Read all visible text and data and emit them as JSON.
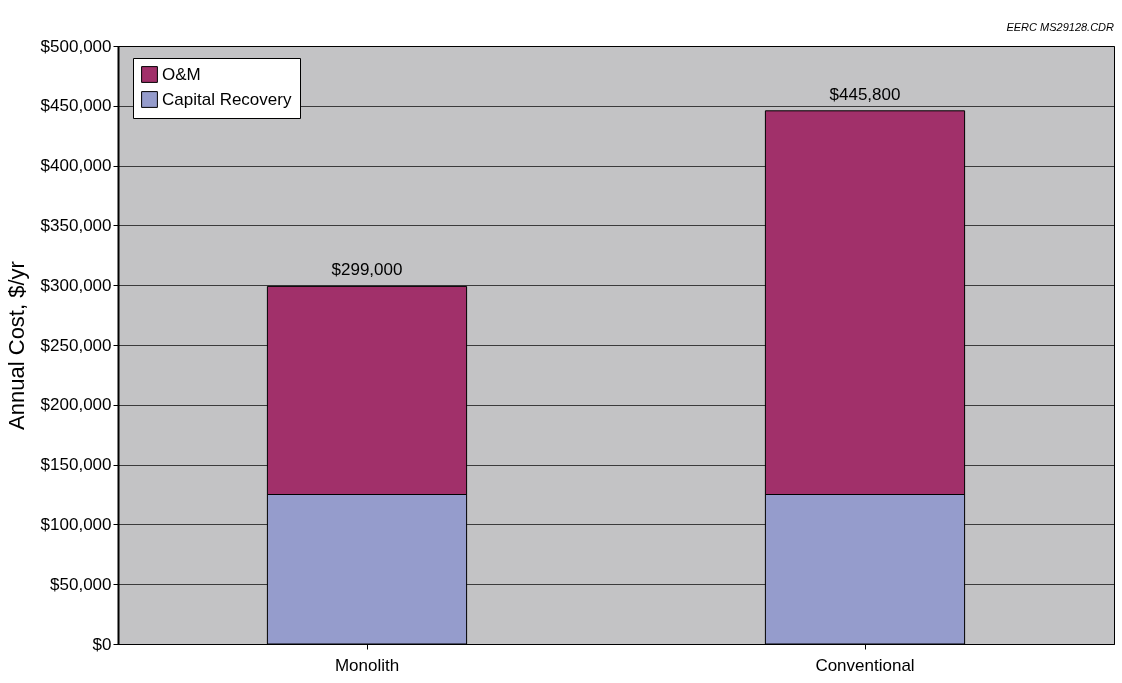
{
  "chart_data": {
    "type": "bar",
    "stacked": true,
    "ylabel": "Annual Cost, $/yr",
    "categories": [
      "Monolith",
      "Conventional"
    ],
    "series": [
      {
        "name": "Capital Recovery",
        "color": "#959ccc",
        "values": [
          125000,
          125000
        ]
      },
      {
        "name": "O&M",
        "color": "#a1306a",
        "values": [
          174000,
          320800
        ]
      }
    ],
    "totals": [
      "$299,000",
      "$445,800"
    ],
    "ylim": [
      0,
      500000
    ],
    "yticks": [
      {
        "value": 0,
        "label": "$0"
      },
      {
        "value": 50000,
        "label": "$50,000"
      },
      {
        "value": 100000,
        "label": "$100,000"
      },
      {
        "value": 150000,
        "label": "$150,000"
      },
      {
        "value": 200000,
        "label": "$200,000"
      },
      {
        "value": 250000,
        "label": "$250,000"
      },
      {
        "value": 300000,
        "label": "$300,000"
      },
      {
        "value": 350000,
        "label": "$350,000"
      },
      {
        "value": 400000,
        "label": "$400,000"
      },
      {
        "value": 450000,
        "label": "$450,000"
      },
      {
        "value": 500000,
        "label": "$500,000"
      }
    ],
    "grid": "y",
    "legend": "top left",
    "annotations": [
      "EERC MS29128.CDR"
    ]
  }
}
